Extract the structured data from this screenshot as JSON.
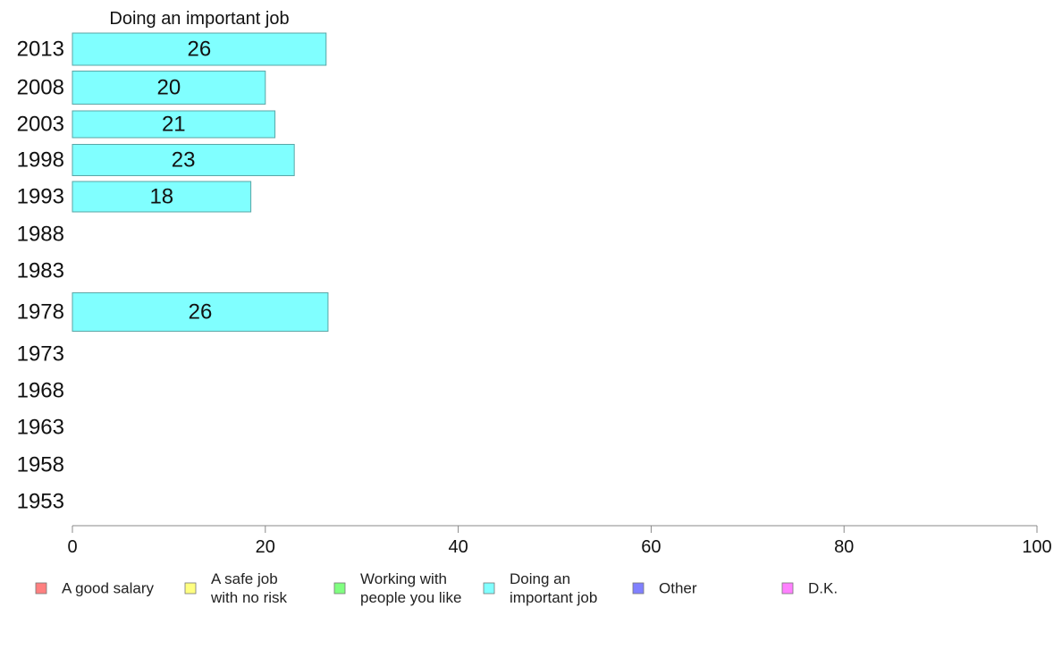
{
  "chart_data": {
    "type": "bar",
    "orientation": "horizontal",
    "title": "Doing an important job",
    "categories": [
      "2013",
      "2008",
      "2003",
      "1998",
      "1993",
      "1988",
      "1983",
      "1978",
      "1973",
      "1968",
      "1963",
      "1958",
      "1953"
    ],
    "series": [
      {
        "name": "Doing an important job",
        "color": "#80ffff",
        "values": [
          26.3,
          20,
          21,
          23,
          18.5,
          null,
          null,
          26.5,
          null,
          null,
          null,
          null,
          null
        ]
      }
    ],
    "data_labels": [
      "26",
      "20",
      "21",
      "23",
      "18",
      "",
      "",
      "26",
      "",
      "",
      "",
      "",
      ""
    ],
    "xlim": [
      0,
      100
    ],
    "xticks": [
      "0",
      "20",
      "40",
      "60",
      "80",
      "100"
    ],
    "grid": false,
    "legend": {
      "placement": "bottom",
      "items": [
        {
          "label_lines": [
            "A good salary"
          ],
          "color": "#ff8080"
        },
        {
          "label_lines": [
            "A safe job",
            "with no risk"
          ],
          "color": "#ffff80"
        },
        {
          "label_lines": [
            "Working with",
            "people you like"
          ],
          "color": "#80ff80"
        },
        {
          "label_lines": [
            "Doing an",
            "important job"
          ],
          "color": "#80ffff"
        },
        {
          "label_lines": [
            "Other"
          ],
          "color": "#8080ff"
        },
        {
          "label_lines": [
            "D.K."
          ],
          "color": "#ff80ff"
        }
      ]
    }
  }
}
